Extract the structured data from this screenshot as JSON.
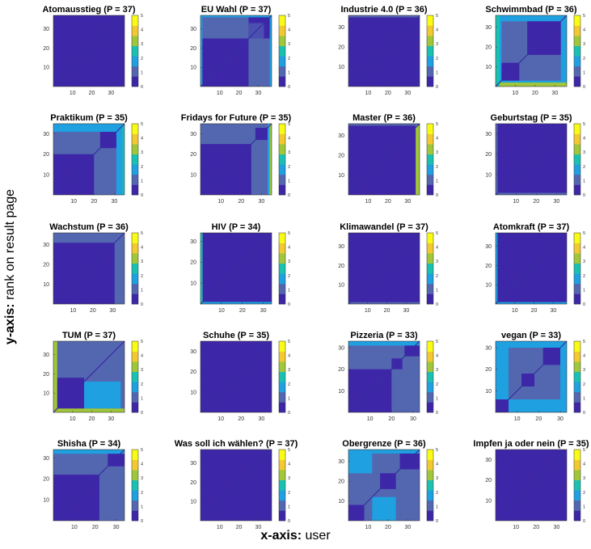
{
  "figure": {
    "y_axis_prefix": "y-axis:",
    "y_axis_text": "rank on result page",
    "x_axis_prefix": "x-axis:",
    "x_axis_text": "user",
    "colorbar_ticks": [
      "0",
      "1",
      "2",
      "3",
      "4",
      "5"
    ],
    "x_ticks": [
      "10",
      "20",
      "30"
    ],
    "y_ticks": [
      "10",
      "20",
      "30"
    ],
    "colormap": [
      "#3e26a8",
      "#5367b0",
      "#1fa0e0",
      "#1ac1b2",
      "#a0c63a",
      "#f2c930",
      "#f9fb15"
    ]
  },
  "chart_data": [
    {
      "type": "heatmap",
      "title": "Atomausstieg (P = 37)",
      "P": 37,
      "colorbar": [
        0,
        5
      ],
      "blocks": [
        {
          "x": [
            0,
            37
          ],
          "y": [
            0,
            37
          ],
          "v": 0
        }
      ]
    },
    {
      "type": "heatmap",
      "title": "EU Wahl (P = 37)",
      "P": 37,
      "colorbar": [
        0,
        5
      ],
      "blocks": [
        {
          "x": [
            0,
            37
          ],
          "y": [
            0,
            37
          ],
          "v": 1
        },
        {
          "x": [
            0,
            25
          ],
          "y": [
            0,
            25
          ],
          "v": 0
        },
        {
          "x": [
            25,
            37
          ],
          "y": [
            25,
            37
          ],
          "v": 0
        },
        {
          "x": [
            25,
            33
          ],
          "y": [
            25,
            33
          ],
          "v": 0.5
        },
        {
          "x": [
            33,
            37
          ],
          "y": [
            33,
            37
          ],
          "v": 0
        },
        {
          "x": [
            0,
            37
          ],
          "y": [
            36,
            37
          ],
          "v": 2
        },
        {
          "x": [
            0,
            1
          ],
          "y": [
            0,
            37
          ],
          "v": 2
        },
        {
          "x": [
            36,
            37
          ],
          "y": [
            0,
            37
          ],
          "v": 2
        }
      ]
    },
    {
      "type": "heatmap",
      "title": "Industrie 4.0 (P = 36)",
      "P": 36,
      "colorbar": [
        0,
        5
      ],
      "blocks": [
        {
          "x": [
            0,
            36
          ],
          "y": [
            0,
            36
          ],
          "v": 0
        },
        {
          "x": [
            0,
            36
          ],
          "y": [
            35,
            36
          ],
          "v": 1
        }
      ]
    },
    {
      "type": "heatmap",
      "title": "Schwimmbad (P = 36)",
      "P": 36,
      "colorbar": [
        0,
        5
      ],
      "blocks": [
        {
          "x": [
            0,
            36
          ],
          "y": [
            0,
            36
          ],
          "v": 2
        },
        {
          "x": [
            3,
            33
          ],
          "y": [
            3,
            33
          ],
          "v": 1
        },
        {
          "x": [
            3,
            12
          ],
          "y": [
            3,
            12
          ],
          "v": 0
        },
        {
          "x": [
            16,
            33
          ],
          "y": [
            16,
            33
          ],
          "v": 0
        },
        {
          "x": [
            0,
            36
          ],
          "y": [
            0,
            2
          ],
          "v": 4
        },
        {
          "x": [
            0,
            2
          ],
          "y": [
            0,
            36
          ],
          "v": 3
        }
      ]
    },
    {
      "type": "heatmap",
      "title": "Praktikum (P = 35)",
      "P": 35,
      "colorbar": [
        0,
        5
      ],
      "blocks": [
        {
          "x": [
            0,
            35
          ],
          "y": [
            0,
            35
          ],
          "v": 1
        },
        {
          "x": [
            0,
            20
          ],
          "y": [
            0,
            20
          ],
          "v": 0
        },
        {
          "x": [
            23,
            31
          ],
          "y": [
            23,
            31
          ],
          "v": 0
        },
        {
          "x": [
            31,
            35
          ],
          "y": [
            0,
            35
          ],
          "v": 2
        },
        {
          "x": [
            0,
            35
          ],
          "y": [
            31,
            35
          ],
          "v": 2
        },
        {
          "x": [
            34,
            35
          ],
          "y": [
            0,
            35
          ],
          "v": 3
        }
      ]
    },
    {
      "type": "heatmap",
      "title": "Fridays for Future (P = 35)",
      "P": 35,
      "colorbar": [
        0,
        5
      ],
      "blocks": [
        {
          "x": [
            0,
            35
          ],
          "y": [
            0,
            35
          ],
          "v": 1
        },
        {
          "x": [
            0,
            25
          ],
          "y": [
            0,
            25
          ],
          "v": 0
        },
        {
          "x": [
            27,
            33
          ],
          "y": [
            27,
            33
          ],
          "v": 0
        },
        {
          "x": [
            33,
            35
          ],
          "y": [
            0,
            35
          ],
          "v": 2
        },
        {
          "x": [
            34,
            35
          ],
          "y": [
            0,
            35
          ],
          "v": 4
        }
      ]
    },
    {
      "type": "heatmap",
      "title": "Master (P = 36)",
      "P": 36,
      "colorbar": [
        0,
        5
      ],
      "blocks": [
        {
          "x": [
            0,
            36
          ],
          "y": [
            0,
            36
          ],
          "v": 0
        },
        {
          "x": [
            34,
            36
          ],
          "y": [
            0,
            36
          ],
          "v": 4
        },
        {
          "x": [
            0,
            36
          ],
          "y": [
            35,
            36
          ],
          "v": 1
        }
      ]
    },
    {
      "type": "heatmap",
      "title": "Geburtstag (P = 35)",
      "P": 35,
      "colorbar": [
        0,
        5
      ],
      "blocks": [
        {
          "x": [
            0,
            35
          ],
          "y": [
            0,
            35
          ],
          "v": 0
        },
        {
          "x": [
            0,
            35
          ],
          "y": [
            0,
            1
          ],
          "v": 1
        },
        {
          "x": [
            0,
            1
          ],
          "y": [
            0,
            35
          ],
          "v": 1
        }
      ]
    },
    {
      "type": "heatmap",
      "title": "Wachstum (P = 36)",
      "P": 36,
      "colorbar": [
        0,
        5
      ],
      "blocks": [
        {
          "x": [
            0,
            36
          ],
          "y": [
            0,
            36
          ],
          "v": 1
        },
        {
          "x": [
            0,
            31
          ],
          "y": [
            0,
            31
          ],
          "v": 0
        }
      ]
    },
    {
      "type": "heatmap",
      "title": "HIV (P = 34)",
      "P": 34,
      "colorbar": [
        0,
        5
      ],
      "blocks": [
        {
          "x": [
            0,
            34
          ],
          "y": [
            0,
            34
          ],
          "v": 0
        },
        {
          "x": [
            0,
            34
          ],
          "y": [
            0,
            1
          ],
          "v": 2
        },
        {
          "x": [
            0,
            1
          ],
          "y": [
            0,
            34
          ],
          "v": 3
        }
      ]
    },
    {
      "type": "heatmap",
      "title": "Klimawandel (P = 37)",
      "P": 37,
      "colorbar": [
        0,
        5
      ],
      "blocks": [
        {
          "x": [
            0,
            37
          ],
          "y": [
            0,
            37
          ],
          "v": 0
        },
        {
          "x": [
            0,
            37
          ],
          "y": [
            0,
            1
          ],
          "v": 1
        }
      ]
    },
    {
      "type": "heatmap",
      "title": "Atomkraft (P = 37)",
      "P": 37,
      "colorbar": [
        0,
        5
      ],
      "blocks": [
        {
          "x": [
            0,
            37
          ],
          "y": [
            0,
            37
          ],
          "v": 0
        },
        {
          "x": [
            0,
            37
          ],
          "y": [
            0,
            1
          ],
          "v": 2
        },
        {
          "x": [
            0,
            1
          ],
          "y": [
            0,
            37
          ],
          "v": 2
        }
      ]
    },
    {
      "type": "heatmap",
      "title": "TUM (P = 37)",
      "P": 37,
      "colorbar": [
        0,
        5
      ],
      "blocks": [
        {
          "x": [
            0,
            37
          ],
          "y": [
            0,
            37
          ],
          "v": 1
        },
        {
          "x": [
            0,
            16
          ],
          "y": [
            0,
            18
          ],
          "v": 0
        },
        {
          "x": [
            16,
            35
          ],
          "y": [
            2,
            16
          ],
          "v": 2
        },
        {
          "x": [
            0,
            37
          ],
          "y": [
            0,
            2
          ],
          "v": 4
        },
        {
          "x": [
            0,
            2
          ],
          "y": [
            0,
            37
          ],
          "v": 4
        }
      ],
      "diagonal": 0
    },
    {
      "type": "heatmap",
      "title": "Schuhe (P = 35)",
      "P": 35,
      "colorbar": [
        0,
        5
      ],
      "blocks": [
        {
          "x": [
            0,
            35
          ],
          "y": [
            0,
            35
          ],
          "v": 0
        }
      ]
    },
    {
      "type": "heatmap",
      "title": "Pizzeria (P = 33)",
      "P": 33,
      "colorbar": [
        0,
        5
      ],
      "blocks": [
        {
          "x": [
            0,
            33
          ],
          "y": [
            0,
            33
          ],
          "v": 1
        },
        {
          "x": [
            0,
            20
          ],
          "y": [
            0,
            20
          ],
          "v": 0
        },
        {
          "x": [
            20,
            25
          ],
          "y": [
            20,
            25
          ],
          "v": 0
        },
        {
          "x": [
            26,
            33
          ],
          "y": [
            26,
            33
          ],
          "v": 0
        },
        {
          "x": [
            0,
            33
          ],
          "y": [
            31,
            33
          ],
          "v": 2
        }
      ]
    },
    {
      "type": "heatmap",
      "title": "vegan (P = 33)",
      "P": 33,
      "colorbar": [
        0,
        5
      ],
      "blocks": [
        {
          "x": [
            0,
            33
          ],
          "y": [
            0,
            33
          ],
          "v": 2
        },
        {
          "x": [
            6,
            30
          ],
          "y": [
            6,
            30
          ],
          "v": 1
        },
        {
          "x": [
            0,
            6
          ],
          "y": [
            0,
            6
          ],
          "v": 0
        },
        {
          "x": [
            12,
            18
          ],
          "y": [
            12,
            18
          ],
          "v": 0
        },
        {
          "x": [
            22,
            30
          ],
          "y": [
            22,
            30
          ],
          "v": 0
        },
        {
          "x": [
            6,
            28
          ],
          "y": [
            0,
            5
          ],
          "v": 2
        }
      ]
    },
    {
      "type": "heatmap",
      "title": "Shisha (P = 34)",
      "P": 34,
      "colorbar": [
        0,
        5
      ],
      "blocks": [
        {
          "x": [
            0,
            34
          ],
          "y": [
            0,
            34
          ],
          "v": 1
        },
        {
          "x": [
            0,
            22
          ],
          "y": [
            0,
            22
          ],
          "v": 0
        },
        {
          "x": [
            26,
            34
          ],
          "y": [
            26,
            34
          ],
          "v": 0
        },
        {
          "x": [
            0,
            34
          ],
          "y": [
            32,
            34
          ],
          "v": 2
        }
      ]
    },
    {
      "type": "heatmap",
      "title": "Was soll ich wählen? (P = 37)",
      "P": 37,
      "colorbar": [
        0,
        5
      ],
      "blocks": [
        {
          "x": [
            0,
            37
          ],
          "y": [
            0,
            37
          ],
          "v": 0
        }
      ]
    },
    {
      "type": "heatmap",
      "title": "Obergrenze (P = 36)",
      "P": 36,
      "colorbar": [
        0,
        5
      ],
      "blocks": [
        {
          "x": [
            0,
            36
          ],
          "y": [
            0,
            36
          ],
          "v": 1
        },
        {
          "x": [
            0,
            12
          ],
          "y": [
            24,
            36
          ],
          "v": 2
        },
        {
          "x": [
            12,
            24
          ],
          "y": [
            0,
            12
          ],
          "v": 2
        },
        {
          "x": [
            0,
            8
          ],
          "y": [
            0,
            8
          ],
          "v": 0
        },
        {
          "x": [
            16,
            24
          ],
          "y": [
            16,
            24
          ],
          "v": 0
        },
        {
          "x": [
            26,
            36
          ],
          "y": [
            26,
            36
          ],
          "v": 0
        },
        {
          "x": [
            0,
            36
          ],
          "y": [
            34,
            36
          ],
          "v": 2
        }
      ]
    },
    {
      "type": "heatmap",
      "title": "Impfen ja oder nein (P = 35)",
      "P": 35,
      "colorbar": [
        0,
        5
      ],
      "blocks": [
        {
          "x": [
            0,
            35
          ],
          "y": [
            0,
            35
          ],
          "v": 0
        }
      ]
    }
  ]
}
